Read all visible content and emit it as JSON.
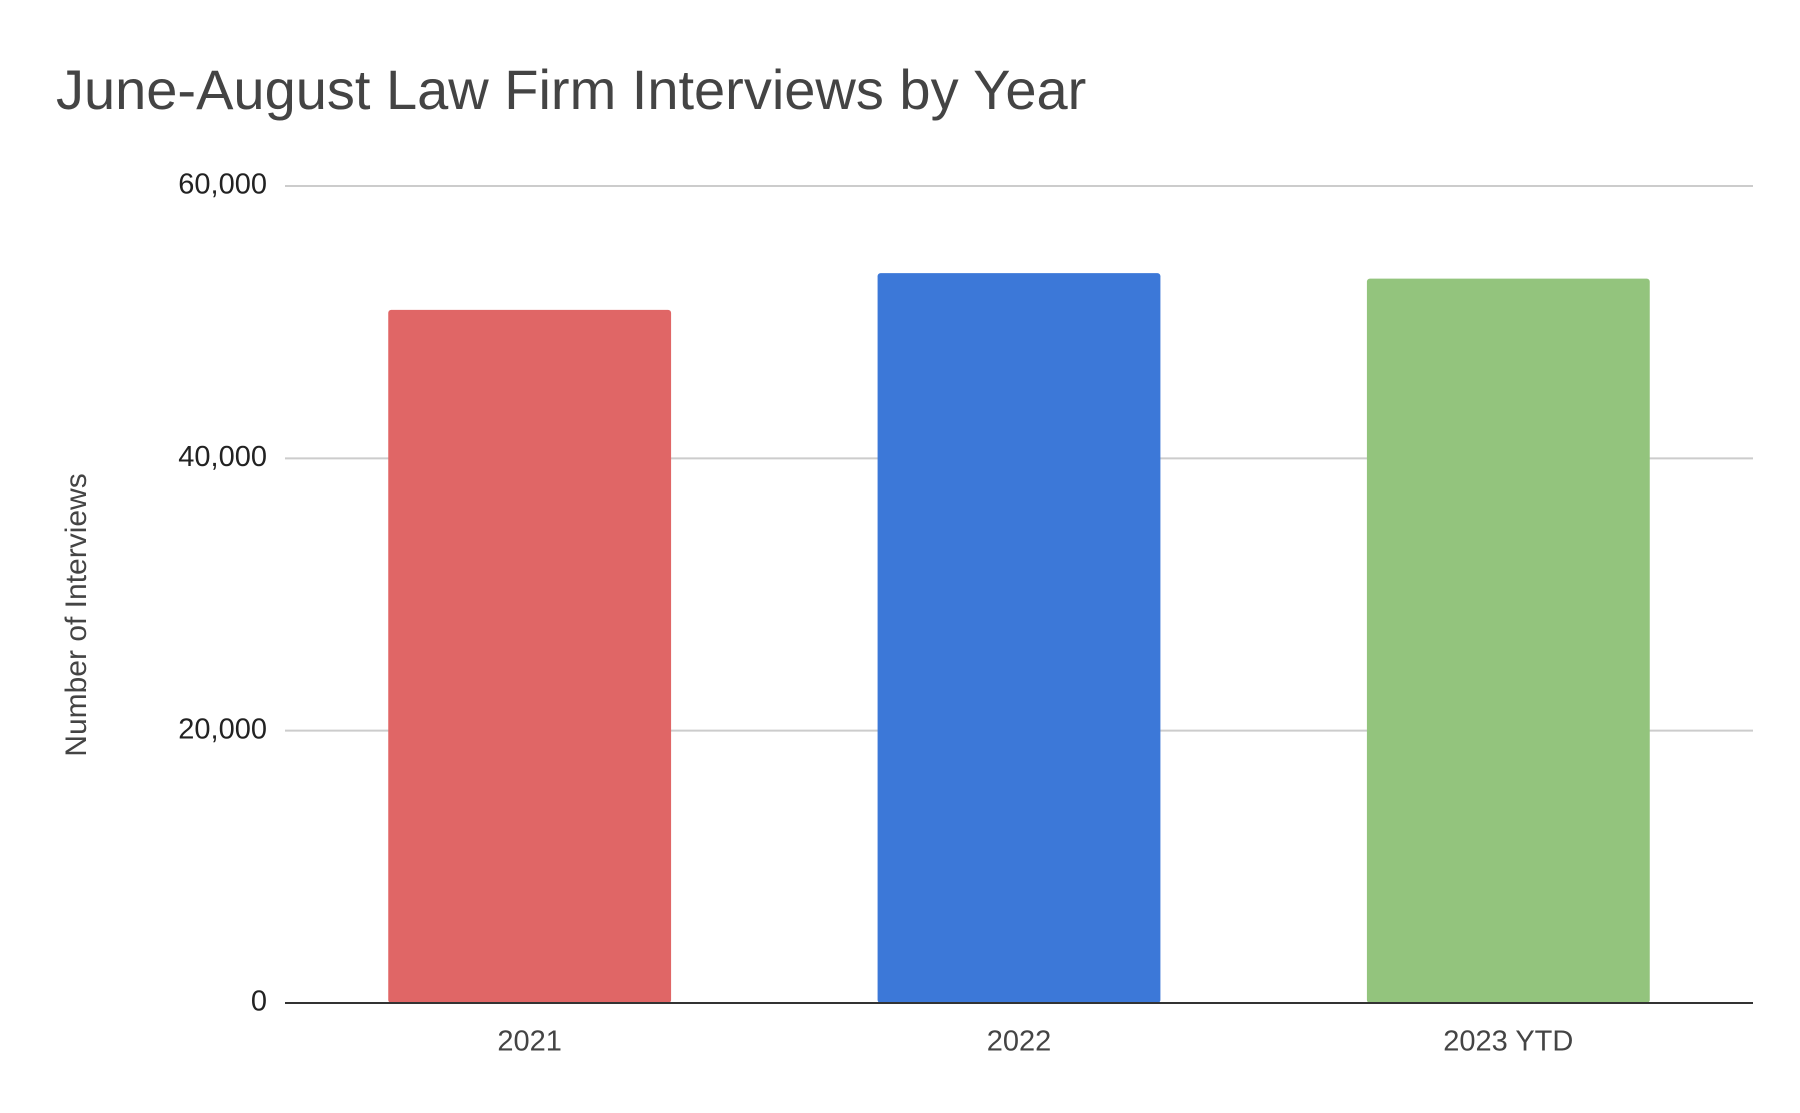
{
  "chart_data": {
    "type": "bar",
    "title": "June-August Law Firm Interviews by Year",
    "y_axis_label": "Number of Interviews",
    "categories": [
      "2021",
      "2022",
      "2023 YTD"
    ],
    "values": [
      50900,
      53600,
      53200
    ],
    "colors": [
      "#e06666",
      "#3c78d8",
      "#93c47d"
    ],
    "ylim": [
      0,
      60000
    ],
    "yticks": [
      0,
      {
        "value": 20000,
        "label": "20,000"
      },
      {
        "value": 40000,
        "label": "40,000"
      },
      {
        "value": 60000,
        "label": "60,000"
      }
    ],
    "grid": true
  }
}
